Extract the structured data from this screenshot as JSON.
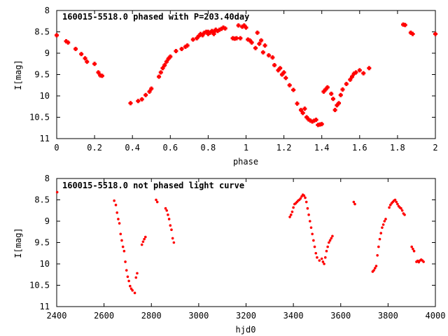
{
  "chart_data": [
    {
      "type": "scatter",
      "title": "160015-5518.0 phased with P=203.40day",
      "xlabel": "phase",
      "ylabel": "I[mag]",
      "xlim": [
        0,
        2
      ],
      "ylim": [
        8,
        11
      ],
      "y_inverted": true,
      "x_ticks": [
        "0",
        "0.2",
        "0.4",
        "0.6",
        "0.8",
        "1",
        "1.2",
        "1.4",
        "1.6",
        "1.8",
        "2"
      ],
      "y_ticks": [
        "8",
        "8.5",
        "9",
        "9.5",
        "10",
        "10.5",
        "11"
      ],
      "marker": "plus",
      "color": "#ff0000",
      "series": [
        {
          "x": [
            0.0,
            0.05,
            0.06,
            0.1,
            0.13,
            0.15,
            0.16,
            0.2,
            0.22,
            0.23,
            0.24,
            0.39,
            0.43,
            0.45,
            0.47,
            0.49,
            0.5,
            0.54,
            0.55,
            0.56,
            0.57,
            0.58,
            0.59,
            0.6,
            0.63,
            0.66,
            0.68,
            0.69,
            0.72,
            0.74,
            0.75,
            0.76,
            0.77,
            0.78,
            0.79,
            0.8,
            0.8,
            0.81,
            0.82,
            0.83,
            0.83,
            0.84,
            0.85,
            0.86,
            0.87,
            0.88,
            0.89,
            0.93,
            0.94,
            0.95,
            0.96,
            0.97,
            0.98,
            0.99,
            1.0,
            1.01,
            1.02,
            1.03,
            1.05,
            1.06,
            1.07,
            1.08,
            1.09,
            1.1,
            1.12,
            1.14,
            1.15,
            1.17,
            1.18,
            1.19,
            1.2,
            1.21,
            1.23,
            1.25,
            1.27,
            1.29,
            1.3,
            1.31,
            1.32,
            1.33,
            1.34,
            1.35,
            1.36,
            1.37,
            1.38,
            1.39,
            1.4,
            1.41,
            1.42,
            1.43,
            1.45,
            1.46,
            1.47,
            1.48,
            1.49,
            1.5,
            1.51,
            1.53,
            1.55,
            1.56,
            1.57,
            1.58,
            1.6,
            1.62,
            1.65,
            1.83,
            1.84,
            1.87,
            1.88,
            2.0
          ],
          "y": [
            8.58,
            8.72,
            8.75,
            8.9,
            9.02,
            9.12,
            9.2,
            9.25,
            9.45,
            9.52,
            9.53,
            10.17,
            10.12,
            10.08,
            9.98,
            9.9,
            9.83,
            9.55,
            9.45,
            9.35,
            9.28,
            9.2,
            9.13,
            9.08,
            8.95,
            8.9,
            8.85,
            8.82,
            8.68,
            8.65,
            8.6,
            8.55,
            8.58,
            8.52,
            8.5,
            8.55,
            8.5,
            8.52,
            8.48,
            8.5,
            8.55,
            8.45,
            8.48,
            8.45,
            8.43,
            8.4,
            8.42,
            8.65,
            8.66,
            8.65,
            8.35,
            8.65,
            8.38,
            8.35,
            8.4,
            8.68,
            8.7,
            8.75,
            8.88,
            8.52,
            8.78,
            8.7,
            8.98,
            8.82,
            9.05,
            9.1,
            9.28,
            9.4,
            9.35,
            9.5,
            9.45,
            9.58,
            9.75,
            9.86,
            10.18,
            10.33,
            10.4,
            10.3,
            10.5,
            10.55,
            10.58,
            10.6,
            10.58,
            10.56,
            10.68,
            10.67,
            10.66,
            9.9,
            9.85,
            9.8,
            9.95,
            10.07,
            10.33,
            10.22,
            10.17,
            9.98,
            9.85,
            9.72,
            9.62,
            9.55,
            9.48,
            9.45,
            9.4,
            9.47,
            9.35,
            8.33,
            8.34,
            8.52,
            8.55,
            8.55
          ]
        }
      ]
    },
    {
      "type": "scatter",
      "title": "160015-5518.0 not phased light curve",
      "xlabel": "hjd0",
      "ylabel": "I[mag]",
      "xlim": [
        2400,
        4000
      ],
      "ylim": [
        8,
        11
      ],
      "y_inverted": true,
      "x_ticks": [
        "2400",
        "2600",
        "2800",
        "3000",
        "3200",
        "3400",
        "3600",
        "3800",
        "4000"
      ],
      "y_ticks": [
        "8",
        "8.5",
        "9",
        "9.5",
        "10",
        "10.5",
        "11"
      ],
      "marker": "dot",
      "color": "#ff0000",
      "series": [
        {
          "x": [
            2402,
            2643,
            2650,
            2655,
            2660,
            2665,
            2670,
            2675,
            2680,
            2685,
            2690,
            2695,
            2700,
            2705,
            2710,
            2715,
            2720,
            2730,
            2735,
            2740,
            2760,
            2765,
            2770,
            2775,
            2820,
            2825,
            2860,
            2865,
            2870,
            2875,
            2880,
            2885,
            2890,
            2895,
            3385,
            3390,
            3395,
            3400,
            3405,
            3410,
            3415,
            3420,
            3425,
            3430,
            3435,
            3440,
            3445,
            3450,
            3455,
            3460,
            3465,
            3470,
            3475,
            3480,
            3485,
            3490,
            3495,
            3500,
            3510,
            3520,
            3525,
            3530,
            3535,
            3540,
            3545,
            3550,
            3555,
            3560,
            3565,
            3655,
            3660,
            3735,
            3740,
            3745,
            3750,
            3755,
            3760,
            3765,
            3770,
            3775,
            3780,
            3785,
            3790,
            3805,
            3810,
            3815,
            3820,
            3825,
            3830,
            3835,
            3840,
            3845,
            3850,
            3855,
            3860,
            3865,
            3870,
            3900,
            3905,
            3910,
            3920,
            3925,
            3930,
            3935,
            3940,
            3945,
            3950
          ],
          "y": [
            8.32,
            8.52,
            8.62,
            8.8,
            8.95,
            9.05,
            9.3,
            9.45,
            9.6,
            9.7,
            9.95,
            10.15,
            10.3,
            10.4,
            10.52,
            10.58,
            10.62,
            10.68,
            10.32,
            10.22,
            9.55,
            9.48,
            9.42,
            9.37,
            8.5,
            8.55,
            8.7,
            8.75,
            8.85,
            8.95,
            9.1,
            9.2,
            9.4,
            9.5,
            8.9,
            8.85,
            8.78,
            8.68,
            8.6,
            8.58,
            8.55,
            8.52,
            8.5,
            8.47,
            8.42,
            8.38,
            8.4,
            8.45,
            8.55,
            8.7,
            8.85,
            9.0,
            9.15,
            9.3,
            9.45,
            9.6,
            9.75,
            9.85,
            9.92,
            9.88,
            9.95,
            10.0,
            9.85,
            9.7,
            9.6,
            9.5,
            9.45,
            9.4,
            9.35,
            8.55,
            8.6,
            10.18,
            10.15,
            10.1,
            10.05,
            9.8,
            9.6,
            9.42,
            9.28,
            9.15,
            9.08,
            9.0,
            8.95,
            8.68,
            8.62,
            8.58,
            8.55,
            8.52,
            8.5,
            8.55,
            8.6,
            8.65,
            8.68,
            8.7,
            8.75,
            8.82,
            8.85,
            9.6,
            9.65,
            9.7,
            9.95,
            9.93,
            9.96,
            9.92,
            9.9,
            9.92,
            9.95
          ]
        }
      ]
    }
  ]
}
